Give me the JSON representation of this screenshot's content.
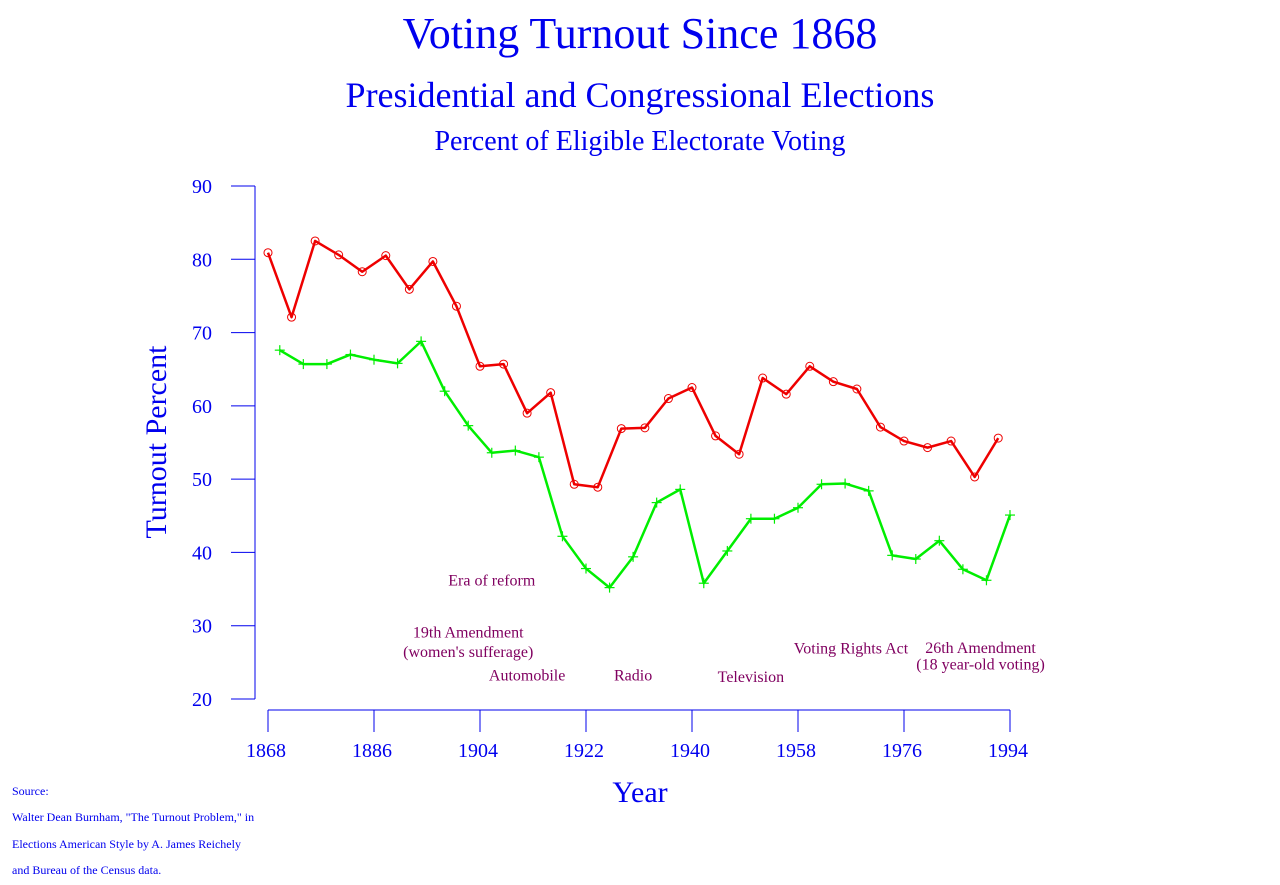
{
  "chart_data": {
    "type": "line",
    "title": "Voting Turnout Since 1868",
    "subtitle": "Presidential and Congressional Elections",
    "subtitle2": "Percent of Eligible Electorate Voting",
    "xlabel": "Year",
    "ylabel": "Turnout Percent",
    "xlim": [
      1868,
      1994
    ],
    "ylim": [
      20,
      90
    ],
    "xticks": [
      1868,
      1886,
      1904,
      1922,
      1940,
      1958,
      1976,
      1994
    ],
    "yticks": [
      20,
      30,
      40,
      50,
      60,
      70,
      80,
      90
    ],
    "grid": false,
    "colors": {
      "text": "#0000ee",
      "axis": "#0000ee",
      "annotation": "#800060",
      "presidential": "#ee0000",
      "congressional": "#00ee00"
    },
    "series": [
      {
        "key": "presidential",
        "marker": "circle",
        "x": [
          1868,
          1872,
          1876,
          1880,
          1884,
          1888,
          1892,
          1896,
          1900,
          1904,
          1908,
          1912,
          1916,
          1920,
          1924,
          1928,
          1932,
          1936,
          1940,
          1944,
          1948,
          1952,
          1956,
          1960,
          1964,
          1968,
          1972,
          1976,
          1980,
          1984,
          1988,
          1992
        ],
        "values": [
          80.9,
          72.1,
          82.5,
          80.6,
          78.3,
          80.5,
          75.9,
          79.7,
          73.6,
          65.4,
          65.7,
          59.0,
          61.8,
          49.3,
          48.9,
          56.9,
          57.0,
          61.0,
          62.5,
          55.9,
          53.4,
          63.8,
          61.6,
          65.4,
          63.3,
          62.3,
          57.1,
          55.2,
          54.3,
          55.2,
          50.3,
          55.6
        ]
      },
      {
        "key": "congressional",
        "marker": "plus",
        "x": [
          1870,
          1874,
          1878,
          1882,
          1886,
          1890,
          1894,
          1898,
          1902,
          1906,
          1910,
          1914,
          1918,
          1922,
          1926,
          1930,
          1934,
          1938,
          1942,
          1946,
          1950,
          1954,
          1958,
          1962,
          1966,
          1970,
          1974,
          1978,
          1982,
          1986,
          1990,
          1994
        ],
        "values": [
          67.6,
          65.7,
          65.7,
          67.0,
          66.3,
          65.8,
          68.8,
          62.0,
          57.3,
          53.6,
          53.9,
          53.0,
          42.2,
          37.8,
          35.2,
          39.4,
          46.8,
          48.6,
          35.8,
          40.2,
          44.6,
          44.6,
          46.1,
          49.3,
          49.4,
          48.4,
          39.6,
          39.1,
          41.6,
          37.7,
          36.2,
          45.1
        ]
      }
    ],
    "annotations": [
      {
        "text": "Era of reform",
        "x": 1906,
        "y": 35.5
      },
      {
        "text": "19th Amendment",
        "x": 1902,
        "y": 28.4
      },
      {
        "text": "(women's sufferage)",
        "x": 1902,
        "y": 25.7
      },
      {
        "text": "Automobile",
        "x": 1912,
        "y": 22.5
      },
      {
        "text": "Radio",
        "x": 1930,
        "y": 22.5
      },
      {
        "text": "Television",
        "x": 1950,
        "y": 22.3
      },
      {
        "text": "Voting Rights Act",
        "x": 1967,
        "y": 26.2
      },
      {
        "text": "26th Amendment",
        "x": 1989,
        "y": 26.3
      },
      {
        "text": "(18 year-old voting)",
        "x": 1989,
        "y": 24.0
      }
    ]
  },
  "source": {
    "line1": "Source:",
    "line2": "Walter Dean Burnham, \"The Turnout Problem,\" in",
    "line3": "Elections American Style by A. James Reichely",
    "line4": "and Bureau of the Census data."
  }
}
